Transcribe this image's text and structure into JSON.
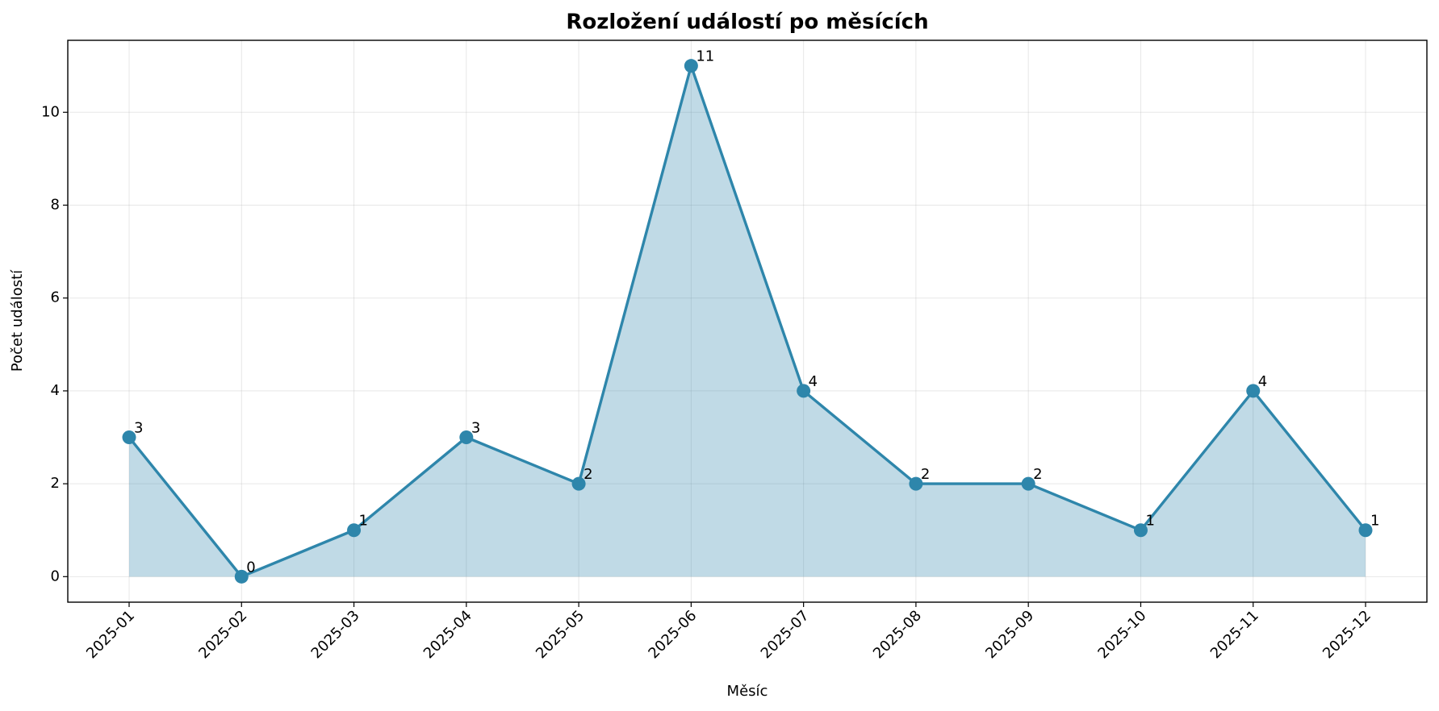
{
  "chart_data": {
    "type": "line",
    "title": "Rozložení událostí po měsících",
    "xlabel": "Měsíc",
    "ylabel": "Počet událostí",
    "categories": [
      "2025-01",
      "2025-02",
      "2025-03",
      "2025-04",
      "2025-05",
      "2025-06",
      "2025-07",
      "2025-08",
      "2025-09",
      "2025-10",
      "2025-11",
      "2025-12"
    ],
    "values": [
      3,
      0,
      1,
      3,
      2,
      11,
      4,
      2,
      2,
      1,
      4,
      1
    ],
    "color": "#2e86ab",
    "fill": true,
    "ylim": [
      -0.55,
      11.55
    ],
    "yticks": [
      0,
      2,
      4,
      6,
      8,
      10
    ],
    "grid": true
  }
}
